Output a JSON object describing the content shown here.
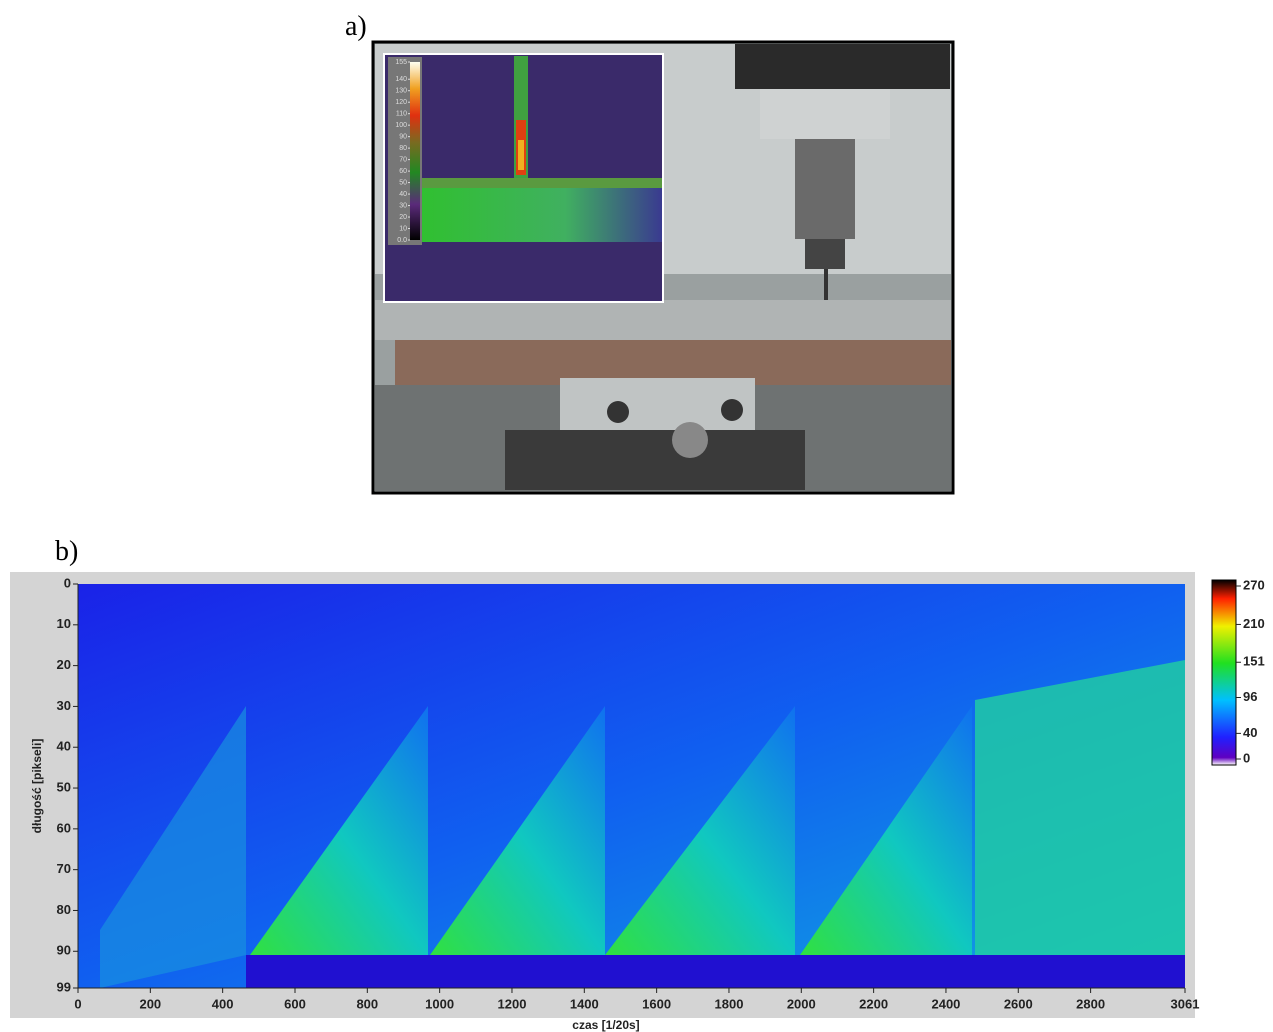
{
  "chart_data": [
    {
      "type": "image",
      "panel_label": "a)",
      "colorbar": {
        "lim": [
          0,
          155
        ],
        "ticks": [
          155,
          140,
          130,
          120,
          110,
          100,
          90,
          80,
          70,
          60,
          50,
          40,
          30,
          20,
          10,
          {
            "value": 0,
            "label": "0.0"
          }
        ]
      }
    },
    {
      "type": "heatmap",
      "panel_label": "b)",
      "xlabel": "czas [1/20s]",
      "ylabel": "długość [pikseli]",
      "xlim": [
        0,
        3061
      ],
      "xticks": [
        0,
        200,
        400,
        600,
        800,
        1000,
        1200,
        1400,
        1600,
        1800,
        2000,
        2200,
        2400,
        2600,
        2800,
        3061
      ],
      "ylim": [
        0,
        99
      ],
      "y_inverted": true,
      "yticks": [
        0,
        10,
        20,
        30,
        40,
        50,
        60,
        70,
        80,
        90,
        99
      ],
      "colorbar": {
        "lim": [
          0,
          270
        ],
        "ticks": [
          0,
          40,
          96,
          151,
          210,
          270
        ]
      }
    }
  ]
}
